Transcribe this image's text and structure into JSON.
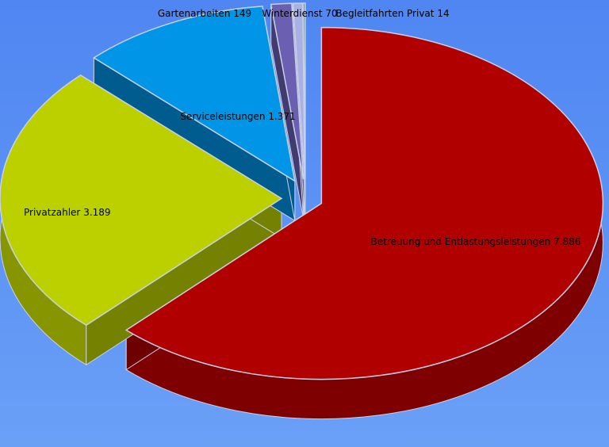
{
  "chart_data": {
    "type": "pie3d",
    "categories": [
      "Betreuung und Entlastungsleistungen",
      "Privatzahler",
      "Serviceleistungen",
      "Gartenarbeiten",
      "Winterdienst",
      "Begleitfahrten Privat"
    ],
    "values": [
      7886,
      3189,
      1371,
      149,
      70,
      14
    ],
    "value_labels": [
      "7.886",
      "3.189",
      "1.371",
      "149",
      "70",
      "14"
    ],
    "colors": [
      "#b00000",
      "#bcd000",
      "#0095e6",
      "#6a5fb0",
      "#a8b0e4",
      "#00c81e"
    ]
  }
}
